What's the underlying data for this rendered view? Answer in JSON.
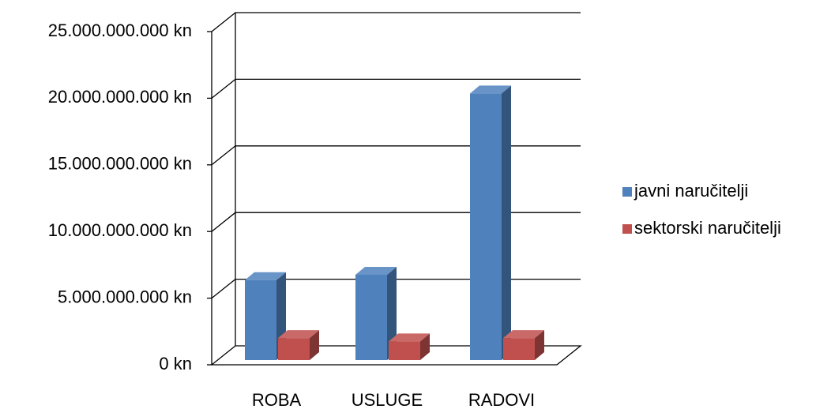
{
  "chart_data": {
    "type": "bar3d",
    "categories": [
      "ROBA",
      "USLUGE",
      "RADOVI"
    ],
    "series": [
      {
        "name": "javni naručitelji",
        "color": "#4f81bd",
        "values": [
          6000000000,
          6400000000,
          20000000000
        ]
      },
      {
        "name": "sektorski naručitelji",
        "color": "#c0504d",
        "values": [
          1650000000,
          1400000000,
          1650000000
        ]
      }
    ],
    "ylim": [
      0,
      25000000000
    ],
    "yticks": [
      {
        "value": 0,
        "label": "0 kn"
      },
      {
        "value": 5000000000,
        "label": "5.000.000.000 kn"
      },
      {
        "value": 10000000000,
        "label": "10.000.000.000 kn"
      },
      {
        "value": 15000000000,
        "label": "15.000.000.000 kn"
      },
      {
        "value": 20000000000,
        "label": "20.000.000.000 kn"
      },
      {
        "value": 25000000000,
        "label": "25.000.000.000 kn"
      }
    ],
    "grid": true,
    "legend": "right"
  }
}
